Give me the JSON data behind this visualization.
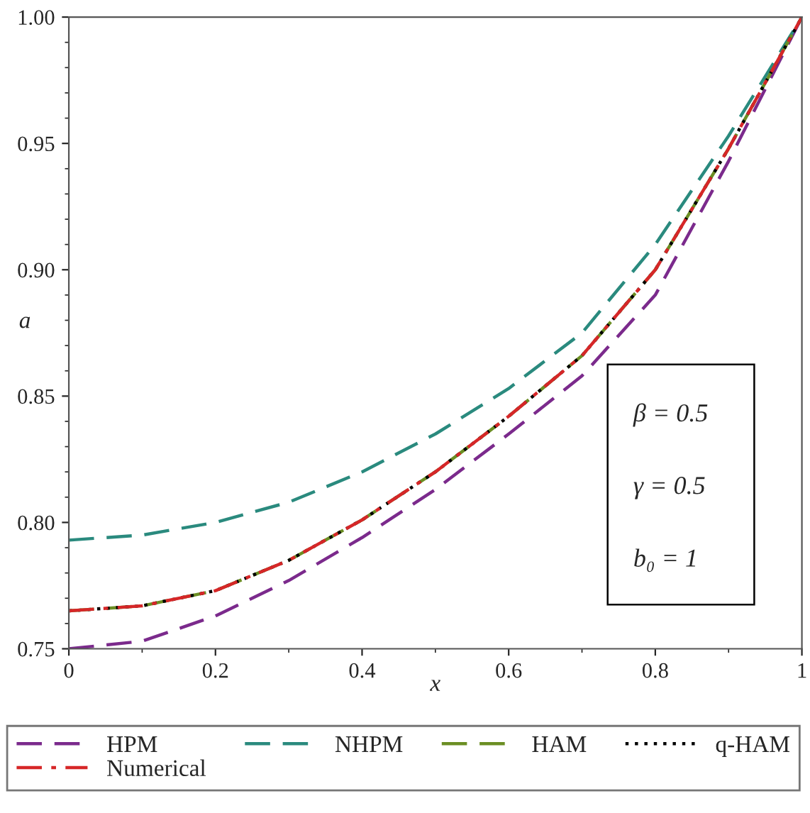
{
  "chart_data": {
    "type": "line",
    "xlabel": "x",
    "ylabel": "a",
    "x": [
      0,
      0.1,
      0.2,
      0.3,
      0.4,
      0.5,
      0.6,
      0.7,
      0.8,
      0.9,
      1.0
    ],
    "series": [
      {
        "name": "HPM",
        "color": "#7b2a8c",
        "line_style": "dashed",
        "values": [
          0.75,
          0.753,
          0.763,
          0.777,
          0.794,
          0.813,
          0.835,
          0.858,
          0.89,
          0.943,
          1.0
        ]
      },
      {
        "name": "NHPM",
        "color": "#2a8a7e",
        "line_style": "dashed",
        "values": [
          0.793,
          0.795,
          0.8,
          0.808,
          0.82,
          0.835,
          0.853,
          0.875,
          0.91,
          0.953,
          1.0
        ]
      },
      {
        "name": "HAM",
        "color": "#6b8e23",
        "line_style": "dashed",
        "values": [
          0.765,
          0.767,
          0.773,
          0.785,
          0.801,
          0.82,
          0.842,
          0.866,
          0.9,
          0.948,
          1.0
        ]
      },
      {
        "name": "q-HAM",
        "color": "#000000",
        "line_style": "dotted",
        "values": [
          0.765,
          0.767,
          0.773,
          0.785,
          0.801,
          0.82,
          0.842,
          0.866,
          0.9,
          0.948,
          1.0
        ]
      },
      {
        "name": "Numerical",
        "color": "#d62728",
        "line_style": "dashdot",
        "values": [
          0.765,
          0.767,
          0.773,
          0.785,
          0.801,
          0.82,
          0.842,
          0.866,
          0.9,
          0.948,
          1.0
        ]
      }
    ],
    "xlim": [
      0,
      1
    ],
    "ylim": [
      0.75,
      1.0
    ],
    "xticks": [
      0,
      0.2,
      0.4,
      0.6,
      0.8,
      1
    ],
    "yticks": [
      0.75,
      {
        "value": 0.8,
        "label": "0.80"
      },
      0.85,
      {
        "value": 0.9,
        "label": "0.90"
      },
      0.95,
      {
        "value": 1.0,
        "label": "1.00"
      }
    ],
    "grid": false,
    "legend": "bottom",
    "marker": "none",
    "annotations": [
      "β = 0.5",
      "γ = 0.5",
      "b₀ = 1"
    ]
  }
}
